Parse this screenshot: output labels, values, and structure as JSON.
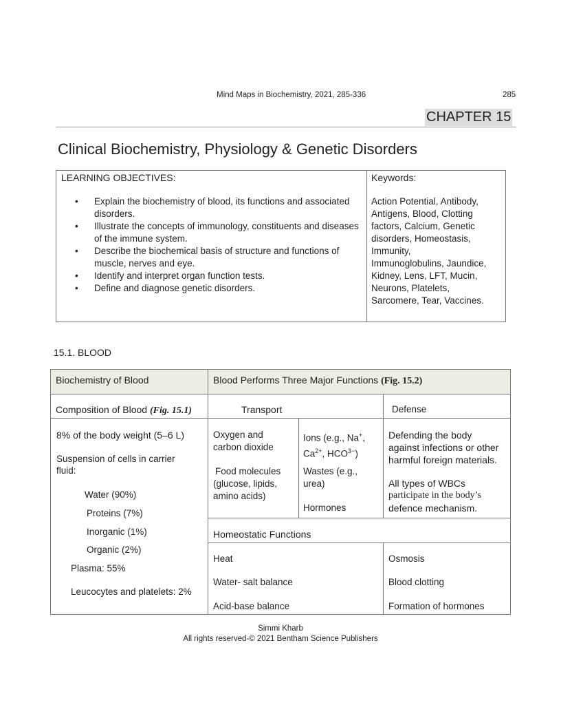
{
  "header": {
    "running_title": "Mind Maps in Biochemistry, 2021, 285-336",
    "page_number": "285",
    "chapter": "CHAPTER 15"
  },
  "title": "Clinical Biochemistry, Physiology & Genetic Disorders",
  "objectives": {
    "heading": "LEARNING OBJECTIVES:",
    "items": [
      "Explain the biochemistry of blood, its functions and associated disorders.",
      "Illustrate the concepts of immunology, constituents and diseases of the immune system.",
      "Describe the biochemical basis of structure and functions of muscle, nerves and eye.",
      "Identify and interpret organ function tests.",
      "Define and diagnose genetic disorders."
    ]
  },
  "keywords": {
    "heading": "Keywords:",
    "lines": [
      "Action Potential, Antibody,",
      "Antigens, Blood, Clotting",
      "factors, Calcium, Genetic",
      "disorders, Homeostasis,",
      "Immunity,",
      "Immunoglobulins, Jaundice,",
      "Kidney, Lens, LFT, Mucin,",
      "Neurons, Platelets,",
      "Sarcomere, Tear, Vaccines."
    ]
  },
  "section": "15.1. BLOOD",
  "table": {
    "header_left": "Biochemistry of Blood",
    "header_right": "Blood Performs Three Major Functions ",
    "header_right_ref": "(Fig. 15.2)",
    "composition": "Composition of Blood ",
    "composition_ref": "(Fig. 15.1)",
    "transport": "Transport",
    "defense": "Defense",
    "left_items": [
      "8% of the body weight (5–6 L)",
      "Suspension of cells in carrier",
      "fluid:",
      "Water (90%)",
      "Proteins (7%)",
      "Inorganic (1%)",
      "Organic (2%)",
      "Plasma: 55%",
      "Leucocytes and platelets: 2%"
    ],
    "transport_a": [
      "Oxygen and",
      "carbon dioxide",
      "Food molecules",
      "(glucose, lipids,",
      "amino acids)"
    ],
    "transport_b": {
      "ions": "Ions (e.g., Na",
      "sup1": "+",
      "l2a": "Ca",
      "sup2": "2+",
      "l2b": ", HCO",
      "sup3": "3−",
      "l2c": ")",
      "wastes1": "Wastes (e.g.,",
      "wastes2": "urea)",
      "hormones": "Hormones"
    },
    "defense_items": [
      "Defending the body",
      "against infections or other",
      "harmful foreign materials.",
      "All types of WBCs",
      "participate in the body’s",
      "defence mechanism."
    ],
    "homeostatic": "Homeostatic Functions",
    "homeo_left": [
      "Heat",
      "Water- salt balance",
      "Acid-base balance"
    ],
    "homeo_right": [
      "Osmosis",
      "Blood clotting",
      "Formation of hormones"
    ],
    "header_bg": "#eeede3"
  },
  "footer": {
    "author": "Simmi Kharb",
    "rights": "All rights reserved-© 2021 Bentham Science Publishers"
  }
}
